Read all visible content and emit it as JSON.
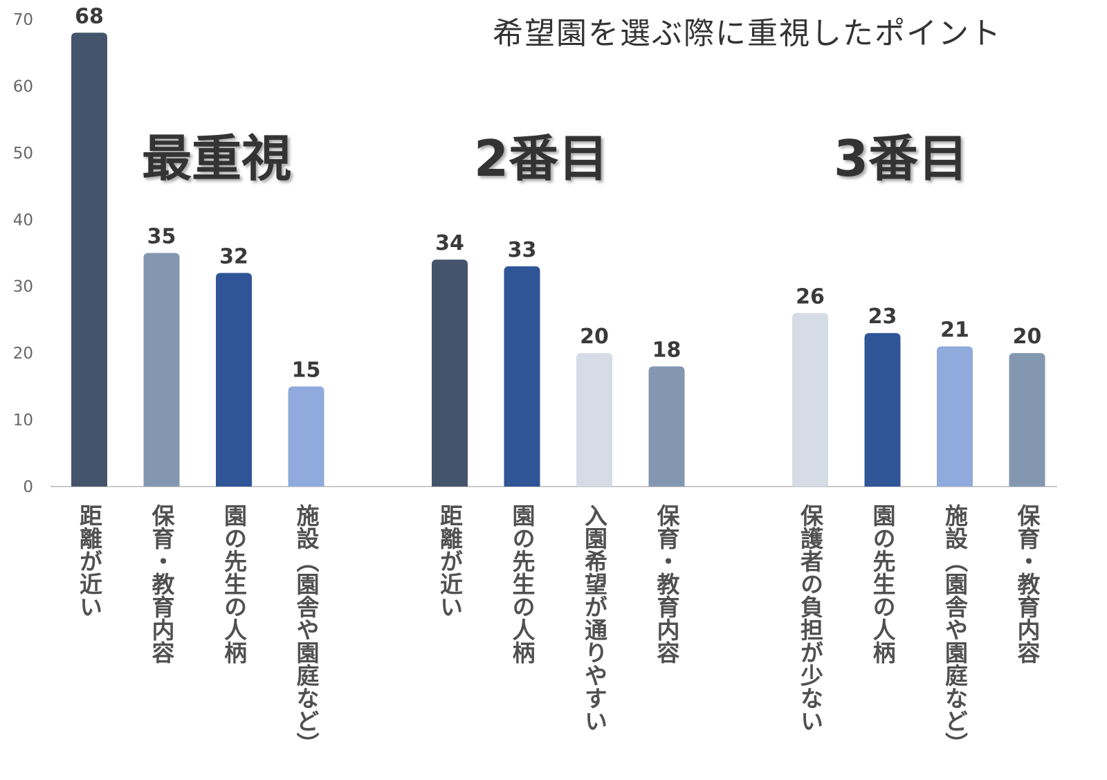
{
  "chart_data": {
    "type": "bar",
    "title": "希望園を選ぶ際に重視したポイント",
    "ylim": [
      0,
      70
    ],
    "yticks": [
      0,
      10,
      20,
      30,
      40,
      50,
      60,
      70
    ],
    "grid": false,
    "legend": "none",
    "groups": [
      {
        "name": "最重視",
        "bars": [
          {
            "category": "距離が近い",
            "value": 68,
            "color": "#44546A"
          },
          {
            "category": "保育・教育内容",
            "value": 35,
            "color": "#8497B0"
          },
          {
            "category": "園の先生の人柄",
            "value": 32,
            "color": "#2F5597"
          },
          {
            "category": "施設（園舎や園庭など）",
            "value": 15,
            "color": "#8FAADC"
          }
        ]
      },
      {
        "name": "2番目",
        "bars": [
          {
            "category": "距離が近い",
            "value": 34,
            "color": "#44546A"
          },
          {
            "category": "園の先生の人柄",
            "value": 33,
            "color": "#2F5597"
          },
          {
            "category": "入園希望が通りやすい",
            "value": 20,
            "color": "#D6DCE5"
          },
          {
            "category": "保育・教育内容",
            "value": 18,
            "color": "#8497B0"
          }
        ]
      },
      {
        "name": "3番目",
        "bars": [
          {
            "category": "保護者の負担が少ない",
            "value": 26,
            "color": "#D6DCE5"
          },
          {
            "category": "園の先生の人柄",
            "value": 23,
            "color": "#2F5597"
          },
          {
            "category": "施設（園舎や園庭など）",
            "value": 21,
            "color": "#8FAADC"
          },
          {
            "category": "保育・教育内容",
            "value": 20,
            "color": "#8497B0"
          }
        ]
      }
    ]
  }
}
